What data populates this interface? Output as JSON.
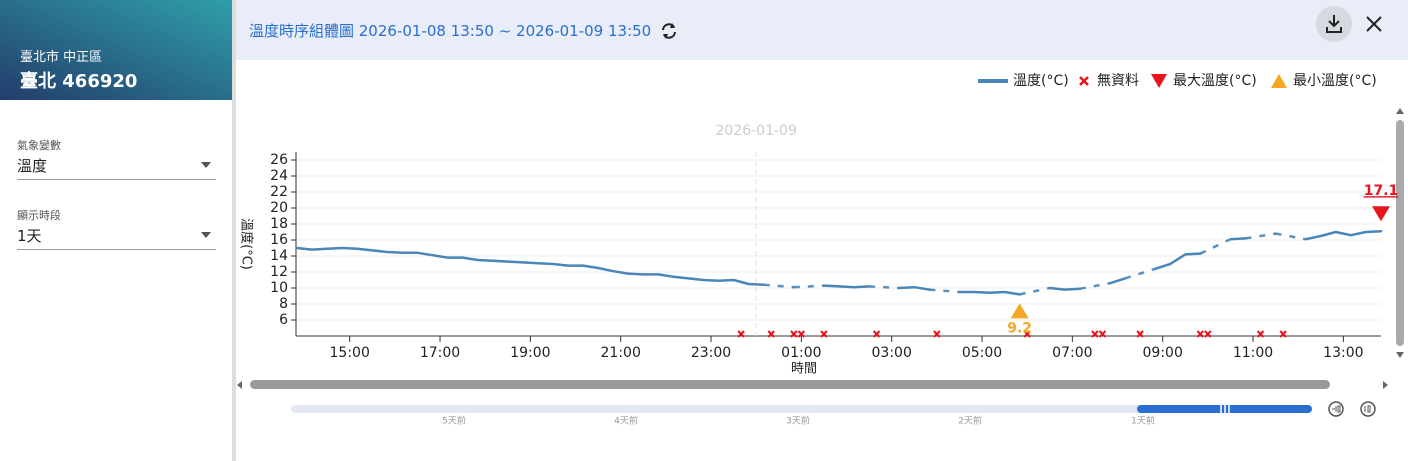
{
  "sidebar": {
    "location": "臺北市 中正區",
    "station": "臺北 466920",
    "fields": [
      {
        "label": "氣象變數",
        "value": "溫度"
      },
      {
        "label": "顯示時段",
        "value": "1天"
      }
    ]
  },
  "header": {
    "title": "溫度時序組體圖 2026-01-08 13:50 ~ 2026-01-09 13:50"
  },
  "chart_data": {
    "type": "line",
    "x_label": "時間",
    "y_label": "溫度(°C)",
    "day_divider": {
      "value": "2026-01-09 00:00",
      "label": "2026-01-09"
    },
    "x": [
      "2026-01-08 13:50",
      "2026-01-08 14:10",
      "2026-01-08 14:30",
      "2026-01-08 14:50",
      "2026-01-08 15:10",
      "2026-01-08 15:30",
      "2026-01-08 15:50",
      "2026-01-08 16:10",
      "2026-01-08 16:30",
      "2026-01-08 16:50",
      "2026-01-08 17:10",
      "2026-01-08 17:30",
      "2026-01-08 17:50",
      "2026-01-08 18:10",
      "2026-01-08 18:30",
      "2026-01-08 18:50",
      "2026-01-08 19:10",
      "2026-01-08 19:30",
      "2026-01-08 19:50",
      "2026-01-08 20:10",
      "2026-01-08 20:30",
      "2026-01-08 20:50",
      "2026-01-08 21:10",
      "2026-01-08 21:30",
      "2026-01-08 21:50",
      "2026-01-08 22:10",
      "2026-01-08 22:30",
      "2026-01-08 22:50",
      "2026-01-08 23:10",
      "2026-01-08 23:30",
      "2026-01-08 23:50",
      "2026-01-09 00:10",
      "2026-01-09 00:30",
      "2026-01-09 00:50",
      "2026-01-09 01:10",
      "2026-01-09 01:30",
      "2026-01-09 01:50",
      "2026-01-09 02:10",
      "2026-01-09 02:30",
      "2026-01-09 02:50",
      "2026-01-09 03:10",
      "2026-01-09 03:30",
      "2026-01-09 03:50",
      "2026-01-09 04:10",
      "2026-01-09 04:30",
      "2026-01-09 04:50",
      "2026-01-09 05:10",
      "2026-01-09 05:30",
      "2026-01-09 05:50",
      "2026-01-09 06:10",
      "2026-01-09 06:30",
      "2026-01-09 06:50",
      "2026-01-09 07:10",
      "2026-01-09 07:30",
      "2026-01-09 07:50",
      "2026-01-09 08:10",
      "2026-01-09 08:30",
      "2026-01-09 08:50",
      "2026-01-09 09:10",
      "2026-01-09 09:30",
      "2026-01-09 09:50",
      "2026-01-09 10:10",
      "2026-01-09 10:30",
      "2026-01-09 10:50",
      "2026-01-09 11:10",
      "2026-01-09 11:30",
      "2026-01-09 11:50",
      "2026-01-09 12:10",
      "2026-01-09 12:30",
      "2026-01-09 12:50",
      "2026-01-09 13:10",
      "2026-01-09 13:30",
      "2026-01-09 13:50"
    ],
    "series": [
      {
        "name": "溫度(°C)",
        "color": "#4a86b8",
        "values": [
          15.0,
          14.8,
          14.9,
          15.0,
          14.9,
          14.7,
          14.5,
          14.4,
          14.4,
          14.1,
          13.8,
          13.8,
          13.5,
          13.4,
          13.3,
          13.2,
          13.1,
          13.0,
          12.8,
          12.8,
          12.5,
          12.1,
          11.8,
          11.7,
          11.7,
          11.4,
          11.2,
          11.0,
          10.9,
          11.0,
          10.5,
          10.4,
          null,
          10.1,
          null,
          10.3,
          10.2,
          10.1,
          10.2,
          null,
          10.0,
          10.1,
          9.8,
          null,
          9.5,
          9.5,
          9.4,
          9.5,
          9.2,
          null,
          10.0,
          9.8,
          9.9,
          null,
          10.6,
          11.2,
          null,
          12.4,
          13.0,
          14.2,
          14.3,
          null,
          16.1,
          16.2,
          null,
          16.8,
          null,
          16.1,
          16.5,
          17.0,
          16.6,
          17.0,
          17.1
        ]
      }
    ],
    "no_data": {
      "name": "無資料",
      "color": "#e8141e",
      "x": [
        "2026-01-08 23:40",
        "2026-01-09 00:20",
        "2026-01-09 00:50",
        "2026-01-09 01:00",
        "2026-01-09 01:30",
        "2026-01-09 02:40",
        "2026-01-09 04:00",
        "2026-01-09 06:00",
        "2026-01-09 07:30",
        "2026-01-09 07:40",
        "2026-01-09 08:30",
        "2026-01-09 09:50",
        "2026-01-09 10:00",
        "2026-01-09 11:10",
        "2026-01-09 11:40"
      ]
    },
    "max": {
      "name": "最大溫度(°C)",
      "color": "#e8141e",
      "x": "2026-01-09 13:50",
      "value": 17.1
    },
    "min": {
      "name": "最小溫度(°C)",
      "color": "#f5a623",
      "x": "2026-01-09 05:50",
      "value": 9.2
    },
    "xlim": [
      "2026-01-08 13:50",
      "2026-01-09 13:50"
    ],
    "xticks": [
      {
        "value": "2026-01-08 15:00",
        "label": "15:00"
      },
      {
        "value": "2026-01-08 17:00",
        "label": "17:00"
      },
      {
        "value": "2026-01-08 19:00",
        "label": "19:00"
      },
      {
        "value": "2026-01-08 21:00",
        "label": "21:00"
      },
      {
        "value": "2026-01-08 23:00",
        "label": "23:00"
      },
      {
        "value": "2026-01-09 01:00",
        "label": "01:00"
      },
      {
        "value": "2026-01-09 03:00",
        "label": "03:00"
      },
      {
        "value": "2026-01-09 05:00",
        "label": "05:00"
      },
      {
        "value": "2026-01-09 07:00",
        "label": "07:00"
      },
      {
        "value": "2026-01-09 09:00",
        "label": "09:00"
      },
      {
        "value": "2026-01-09 11:00",
        "label": "11:00"
      },
      {
        "value": "2026-01-09 13:00",
        "label": "13:00"
      }
    ],
    "ylim": [
      4,
      27
    ],
    "yticks": [
      6,
      8,
      10,
      12,
      14,
      16,
      18,
      20,
      22,
      24,
      26
    ],
    "grid": true
  },
  "timeline": {
    "labels": [
      "5天前",
      "4天前",
      "3天前",
      "2天前",
      "1天前"
    ]
  }
}
